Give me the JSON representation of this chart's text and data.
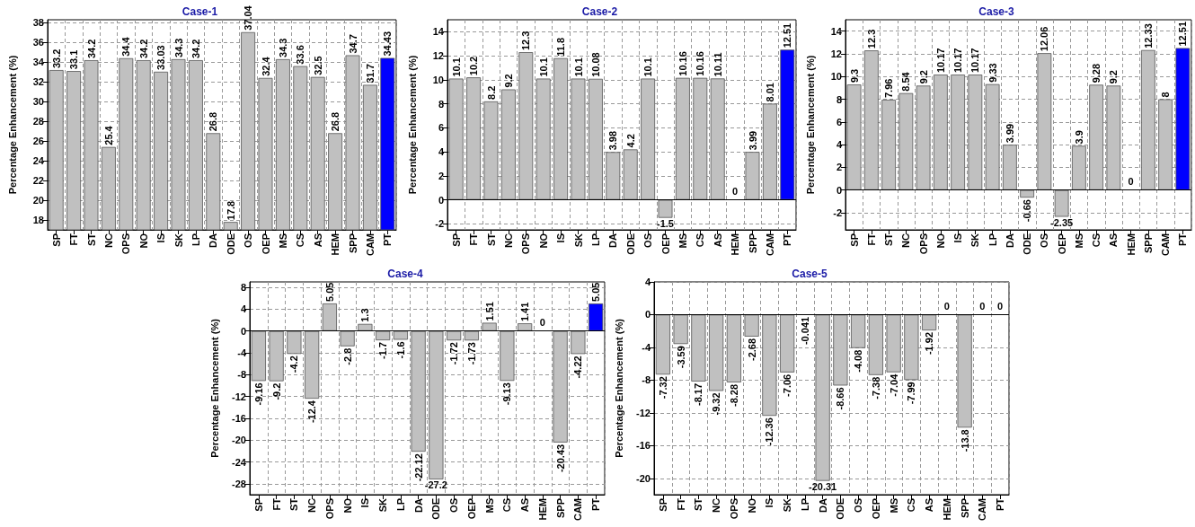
{
  "chart_data": [
    {
      "type": "bar",
      "title": "Case-1",
      "ylabel": "Percentage Enhancement (%)",
      "categories": [
        "SP",
        "FT",
        "ST",
        "NC",
        "OPS",
        "NO",
        "IS",
        "SK",
        "LP",
        "DA",
        "ODE",
        "OS",
        "OEP",
        "MS",
        "CS",
        "AS",
        "HEM",
        "SPP",
        "CAM",
        "PT"
      ],
      "values": [
        33.2,
        33.1,
        34.2,
        25.4,
        34.4,
        34.2,
        33.03,
        34.3,
        34.2,
        26.8,
        17.8,
        37.04,
        32.4,
        34.3,
        33.6,
        32.5,
        26.8,
        34.7,
        31.7,
        34.43
      ],
      "colors": [
        "#c0c0c0",
        "#c0c0c0",
        "#c0c0c0",
        "#c0c0c0",
        "#c0c0c0",
        "#c0c0c0",
        "#c0c0c0",
        "#c0c0c0",
        "#c0c0c0",
        "#c0c0c0",
        "#c0c0c0",
        "#c0c0c0",
        "#c0c0c0",
        "#c0c0c0",
        "#c0c0c0",
        "#c0c0c0",
        "#c0c0c0",
        "#c0c0c0",
        "#c0c0c0",
        "#0000ff"
      ],
      "ylim": [
        17,
        38.3
      ],
      "yticks": [
        18,
        20,
        22,
        24,
        26,
        28,
        30,
        32,
        34,
        36,
        38
      ],
      "grid": true,
      "data_labels": true
    },
    {
      "type": "bar",
      "title": "Case-2",
      "ylabel": "Percentage Enhancement (%)",
      "categories": [
        "SP",
        "FT",
        "ST",
        "NC",
        "OPS",
        "NO",
        "IS",
        "SK",
        "LP",
        "DA",
        "ODE",
        "OS",
        "OEP",
        "MS",
        "CS",
        "AS",
        "HEM",
        "SPP",
        "CAM",
        "PT"
      ],
      "values": [
        10.1,
        10.2,
        8.2,
        9.2,
        12.3,
        10.1,
        11.8,
        10.1,
        10.08,
        3.98,
        4.2,
        10.1,
        -1.5,
        10.16,
        10.16,
        10.11,
        0,
        3.99,
        8.01,
        12.51
      ],
      "colors": [
        "#c0c0c0",
        "#c0c0c0",
        "#c0c0c0",
        "#c0c0c0",
        "#c0c0c0",
        "#c0c0c0",
        "#c0c0c0",
        "#c0c0c0",
        "#c0c0c0",
        "#c0c0c0",
        "#c0c0c0",
        "#c0c0c0",
        "#c0c0c0",
        "#c0c0c0",
        "#c0c0c0",
        "#c0c0c0",
        "#c0c0c0",
        "#c0c0c0",
        "#c0c0c0",
        "#0000ff"
      ],
      "ylim": [
        -2.5,
        15
      ],
      "yticks": [
        -2,
        0,
        2,
        4,
        6,
        8,
        10,
        12,
        14
      ],
      "grid": true,
      "data_labels": true,
      "ref_lines": [
        {
          "axis": "y",
          "value": 0
        }
      ]
    },
    {
      "type": "bar",
      "title": "Case-3",
      "ylabel": "Percentage Enhancement (%)",
      "categories": [
        "SP",
        "FT",
        "ST",
        "NC",
        "OPS",
        "NO",
        "IS",
        "SK",
        "LP",
        "DA",
        "ODE",
        "OS",
        "OEP",
        "MS",
        "CS",
        "AS",
        "HEM",
        "SPP",
        "CAM",
        "PT"
      ],
      "values": [
        9.3,
        12.3,
        7.96,
        8.54,
        9.2,
        10.17,
        10.17,
        10.17,
        9.33,
        3.99,
        -0.66,
        12.06,
        -2.35,
        3.9,
        9.28,
        9.2,
        0,
        12.33,
        8,
        12.51
      ],
      "colors": [
        "#c0c0c0",
        "#c0c0c0",
        "#c0c0c0",
        "#c0c0c0",
        "#c0c0c0",
        "#c0c0c0",
        "#c0c0c0",
        "#c0c0c0",
        "#c0c0c0",
        "#c0c0c0",
        "#c0c0c0",
        "#c0c0c0",
        "#c0c0c0",
        "#c0c0c0",
        "#c0c0c0",
        "#c0c0c0",
        "#c0c0c0",
        "#c0c0c0",
        "#c0c0c0",
        "#0000ff"
      ],
      "ylim": [
        -3.5,
        15
      ],
      "yticks": [
        -2,
        0,
        2,
        4,
        6,
        8,
        10,
        12,
        14
      ],
      "grid": true,
      "data_labels": true,
      "ref_lines": [
        {
          "axis": "y",
          "value": 0
        }
      ]
    },
    {
      "type": "bar",
      "title": "Case-4",
      "ylabel": "Percentage Enhancement (%)",
      "categories": [
        "SP",
        "FT",
        "ST",
        "NC",
        "OPS",
        "NO",
        "IS",
        "SK",
        "LP",
        "DA",
        "ODE",
        "OS",
        "OEP",
        "MS",
        "CS",
        "AS",
        "HEM",
        "SPP",
        "CAM",
        "PT"
      ],
      "values": [
        -9.16,
        -9.2,
        -4.2,
        -12.4,
        5.05,
        -2.8,
        1.3,
        -1.7,
        -1.6,
        -22.12,
        -27.2,
        -1.72,
        -1.73,
        1.51,
        -9.13,
        1.41,
        0,
        -20.43,
        -4.22,
        5.05
      ],
      "colors": [
        "#c0c0c0",
        "#c0c0c0",
        "#c0c0c0",
        "#c0c0c0",
        "#c0c0c0",
        "#c0c0c0",
        "#c0c0c0",
        "#c0c0c0",
        "#c0c0c0",
        "#c0c0c0",
        "#c0c0c0",
        "#c0c0c0",
        "#c0c0c0",
        "#c0c0c0",
        "#c0c0c0",
        "#c0c0c0",
        "#c0c0c0",
        "#c0c0c0",
        "#c0c0c0",
        "#0000ff"
      ],
      "ylim": [
        -30,
        9
      ],
      "yticks": [
        -28,
        -24,
        -20,
        -16,
        -12,
        -8,
        -4,
        0,
        4,
        8
      ],
      "grid": true,
      "data_labels": true,
      "ref_lines": [
        {
          "axis": "y",
          "value": 0
        }
      ]
    },
    {
      "type": "bar",
      "title": "Case-5",
      "ylabel": "Percentage Enhancement (%)",
      "categories": [
        "SP",
        "FT",
        "ST",
        "NC",
        "OPS",
        "NO",
        "IS",
        "SK",
        "LP",
        "DA",
        "ODE",
        "OS",
        "OEP",
        "MS",
        "CS",
        "AS",
        "HEM",
        "SPP",
        "CAM",
        "PT"
      ],
      "values": [
        -7.32,
        -3.59,
        -8.17,
        -9.32,
        -8.28,
        -2.68,
        -12.36,
        -7.06,
        -0.041,
        -20.31,
        -8.66,
        -4.08,
        -7.38,
        -7.04,
        -7.99,
        -1.92,
        0,
        -13.8,
        0,
        0
      ],
      "colors": [
        "#c0c0c0",
        "#c0c0c0",
        "#c0c0c0",
        "#c0c0c0",
        "#c0c0c0",
        "#c0c0c0",
        "#c0c0c0",
        "#c0c0c0",
        "#c0c0c0",
        "#c0c0c0",
        "#c0c0c0",
        "#c0c0c0",
        "#c0c0c0",
        "#c0c0c0",
        "#c0c0c0",
        "#c0c0c0",
        "#c0c0c0",
        "#c0c0c0",
        "#c0c0c0",
        "#0000ff"
      ],
      "ylim": [
        -22,
        4
      ],
      "yticks": [
        -20,
        -16,
        -12,
        -8,
        -4,
        0,
        4
      ],
      "grid": true,
      "data_labels": true,
      "ref_lines": [
        {
          "axis": "y",
          "value": 0
        }
      ]
    }
  ]
}
